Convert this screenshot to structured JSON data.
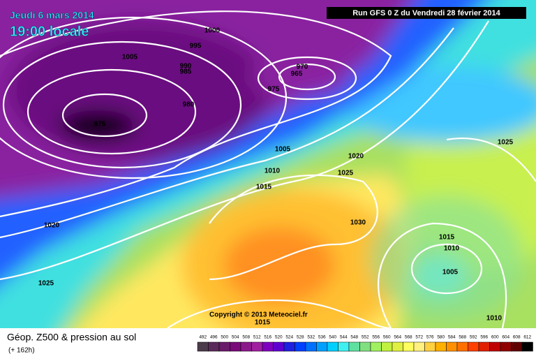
{
  "header": {
    "date": "Jeudi 6 mars 2014",
    "time": "19:00 locale",
    "run": "Run GFS 0 Z du Vendredi 28 février 2014"
  },
  "isobar_labels": [
    1000,
    995,
    1005,
    990,
    985,
    970,
    965,
    975,
    980,
    975,
    1005,
    1020,
    1010,
    1025,
    1015,
    1025,
    1020,
    1030,
    1015,
    1010,
    1005,
    1025,
    1015,
    1010
  ],
  "copyright": "Copyright © 2013 Meteociel.fr",
  "legend": {
    "title": "Géop. Z500 & pression au sol",
    "lead_time": "(+ 162h)",
    "levels": [
      492,
      496,
      500,
      504,
      508,
      512,
      516,
      520,
      524,
      528,
      532,
      536,
      540,
      544,
      548,
      552,
      556,
      560,
      564,
      568,
      572,
      576,
      580,
      584,
      588,
      592,
      596,
      600,
      604,
      608,
      612
    ],
    "colors": [
      "#4b3b4b",
      "#5a2a5a",
      "#6a1a6a",
      "#7a0a7a",
      "#8a1a8a",
      "#a020a0",
      "#8000c0",
      "#6000d0",
      "#2020e0",
      "#0040ff",
      "#0070ff",
      "#00a0ff",
      "#00d0ff",
      "#40f0f0",
      "#60e0a0",
      "#80e080",
      "#a0f060",
      "#c0f040",
      "#e0f040",
      "#ffff60",
      "#fff080",
      "#ffd040",
      "#ffb000",
      "#ff9000",
      "#ff7000",
      "#ff4000",
      "#e02000",
      "#c00000",
      "#900000",
      "#600000",
      "#000000"
    ]
  }
}
